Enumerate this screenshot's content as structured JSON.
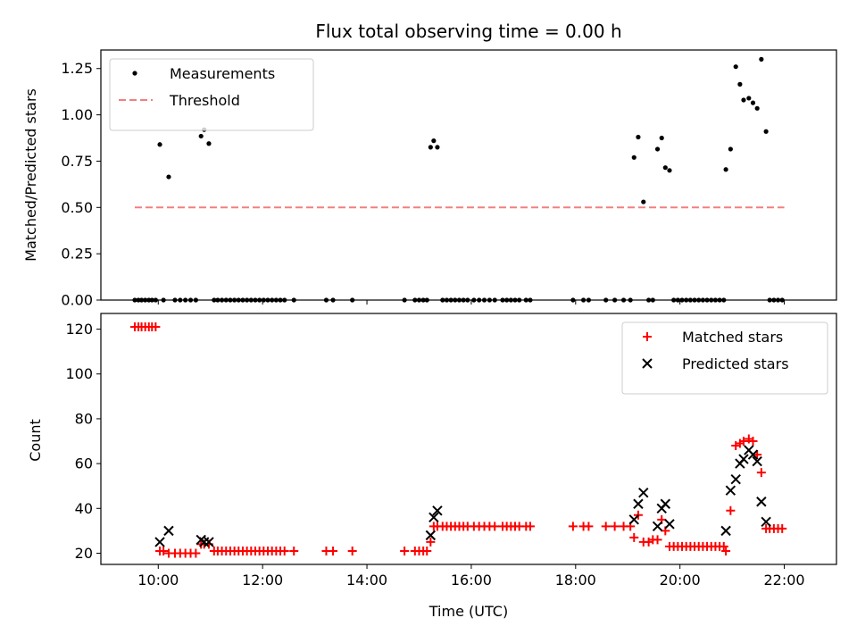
{
  "chart_data": [
    {
      "type": "scatter",
      "title": "Flux total observing time = 0.00 h",
      "xlabel": "",
      "ylabel": "Matched/Predicted stars",
      "xlim_hours": [
        8.9,
        23.0
      ],
      "ylim": [
        0,
        1.35
      ],
      "yticks": [
        0.0,
        0.25,
        0.5,
        0.75,
        1.0,
        1.25
      ],
      "ytick_labels": [
        "0.00",
        "0.25",
        "0.50",
        "0.75",
        "1.00",
        "1.25"
      ],
      "legend_position": "top-left",
      "series": [
        {
          "name": "Measurements",
          "kind": "dot",
          "color": "#000000",
          "points": [
            [
              9.55,
              0
            ],
            [
              9.62,
              0
            ],
            [
              9.68,
              0
            ],
            [
              9.75,
              0
            ],
            [
              9.82,
              0
            ],
            [
              9.88,
              0
            ],
            [
              9.95,
              0
            ],
            [
              10.03,
              0.84
            ],
            [
              10.1,
              0
            ],
            [
              10.2,
              0.665
            ],
            [
              10.32,
              0
            ],
            [
              10.42,
              0
            ],
            [
              10.52,
              0
            ],
            [
              10.62,
              0
            ],
            [
              10.72,
              0
            ],
            [
              10.82,
              0.885
            ],
            [
              10.88,
              0.92
            ],
            [
              10.97,
              0.845
            ],
            [
              11.07,
              0
            ],
            [
              11.14,
              0
            ],
            [
              11.22,
              0
            ],
            [
              11.3,
              0
            ],
            [
              11.38,
              0
            ],
            [
              11.46,
              0
            ],
            [
              11.54,
              0
            ],
            [
              11.62,
              0
            ],
            [
              11.7,
              0
            ],
            [
              11.78,
              0
            ],
            [
              11.86,
              0
            ],
            [
              11.94,
              0
            ],
            [
              12.02,
              0
            ],
            [
              12.1,
              0
            ],
            [
              12.18,
              0
            ],
            [
              12.26,
              0
            ],
            [
              12.34,
              0
            ],
            [
              12.42,
              0
            ],
            [
              12.6,
              0
            ],
            [
              13.22,
              0
            ],
            [
              13.35,
              0
            ],
            [
              13.72,
              0
            ],
            [
              14.72,
              0
            ],
            [
              14.92,
              0
            ],
            [
              15.0,
              0
            ],
            [
              15.08,
              0
            ],
            [
              15.15,
              0
            ],
            [
              15.22,
              0.825
            ],
            [
              15.28,
              0.86
            ],
            [
              15.35,
              0.825
            ],
            [
              15.45,
              0
            ],
            [
              15.53,
              0
            ],
            [
              15.61,
              0
            ],
            [
              15.69,
              0
            ],
            [
              15.77,
              0
            ],
            [
              15.85,
              0
            ],
            [
              15.93,
              0
            ],
            [
              16.05,
              0
            ],
            [
              16.15,
              0
            ],
            [
              16.25,
              0
            ],
            [
              16.35,
              0
            ],
            [
              16.45,
              0
            ],
            [
              16.6,
              0
            ],
            [
              16.68,
              0
            ],
            [
              16.76,
              0
            ],
            [
              16.84,
              0
            ],
            [
              16.92,
              0
            ],
            [
              17.05,
              0
            ],
            [
              17.13,
              0
            ],
            [
              17.95,
              0
            ],
            [
              18.15,
              0
            ],
            [
              18.25,
              0
            ],
            [
              18.58,
              0
            ],
            [
              18.75,
              0
            ],
            [
              18.92,
              0
            ],
            [
              19.05,
              0
            ],
            [
              19.12,
              0.77
            ],
            [
              19.2,
              0.88
            ],
            [
              19.3,
              0.53
            ],
            [
              19.4,
              0
            ],
            [
              19.48,
              0
            ],
            [
              19.57,
              0.815
            ],
            [
              19.65,
              0.875
            ],
            [
              19.72,
              0.715
            ],
            [
              19.8,
              0.7
            ],
            [
              19.88,
              0
            ],
            [
              19.96,
              0
            ],
            [
              20.04,
              0
            ],
            [
              20.12,
              0
            ],
            [
              20.2,
              0
            ],
            [
              20.28,
              0
            ],
            [
              20.36,
              0
            ],
            [
              20.44,
              0
            ],
            [
              20.52,
              0
            ],
            [
              20.6,
              0
            ],
            [
              20.68,
              0
            ],
            [
              20.76,
              0
            ],
            [
              20.84,
              0
            ],
            [
              20.88,
              0.705
            ],
            [
              20.97,
              0.815
            ],
            [
              21.07,
              1.26
            ],
            [
              21.15,
              1.165
            ],
            [
              21.22,
              1.08
            ],
            [
              21.32,
              1.09
            ],
            [
              21.4,
              1.065
            ],
            [
              21.48,
              1.035
            ],
            [
              21.56,
              1.3
            ],
            [
              21.65,
              0.91
            ],
            [
              21.72,
              0
            ],
            [
              21.8,
              0
            ],
            [
              21.88,
              0
            ],
            [
              21.96,
              0
            ]
          ]
        },
        {
          "name": "Threshold",
          "kind": "dashed-line",
          "color": "#f08080",
          "points": [
            [
              9.55,
              0.5
            ],
            [
              22.0,
              0.5
            ]
          ]
        }
      ]
    },
    {
      "type": "scatter",
      "title": "",
      "xlabel": "Time (UTC)",
      "ylabel": "Count",
      "xlim_hours": [
        8.9,
        23.0
      ],
      "ylim": [
        15,
        127
      ],
      "yticks": [
        20,
        40,
        60,
        80,
        100,
        120
      ],
      "ytick_labels": [
        "20",
        "40",
        "60",
        "80",
        "100",
        "120"
      ],
      "xticks_hours": [
        10,
        12,
        14,
        16,
        18,
        20,
        22
      ],
      "xtick_labels": [
        "10:00",
        "12:00",
        "14:00",
        "16:00",
        "18:00",
        "20:00",
        "22:00"
      ],
      "legend_position": "top-right",
      "series": [
        {
          "name": "Matched stars",
          "kind": "plus",
          "color": "#ff0000",
          "points": [
            [
              9.55,
              121
            ],
            [
              9.62,
              121
            ],
            [
              9.68,
              121
            ],
            [
              9.75,
              121
            ],
            [
              9.82,
              121
            ],
            [
              9.88,
              121
            ],
            [
              9.95,
              121
            ],
            [
              10.03,
              21
            ],
            [
              10.1,
              21
            ],
            [
              10.2,
              20
            ],
            [
              10.32,
              20
            ],
            [
              10.42,
              20
            ],
            [
              10.52,
              20
            ],
            [
              10.62,
              20
            ],
            [
              10.72,
              20
            ],
            [
              10.82,
              24
            ],
            [
              10.88,
              24
            ],
            [
              10.97,
              24
            ],
            [
              11.07,
              21
            ],
            [
              11.14,
              21
            ],
            [
              11.22,
              21
            ],
            [
              11.3,
              21
            ],
            [
              11.38,
              21
            ],
            [
              11.46,
              21
            ],
            [
              11.54,
              21
            ],
            [
              11.62,
              21
            ],
            [
              11.7,
              21
            ],
            [
              11.78,
              21
            ],
            [
              11.86,
              21
            ],
            [
              11.94,
              21
            ],
            [
              12.02,
              21
            ],
            [
              12.1,
              21
            ],
            [
              12.18,
              21
            ],
            [
              12.26,
              21
            ],
            [
              12.34,
              21
            ],
            [
              12.42,
              21
            ],
            [
              12.6,
              21
            ],
            [
              13.22,
              21
            ],
            [
              13.35,
              21
            ],
            [
              13.72,
              21
            ],
            [
              14.72,
              21
            ],
            [
              14.92,
              21
            ],
            [
              15.0,
              21
            ],
            [
              15.08,
              21
            ],
            [
              15.15,
              21
            ],
            [
              15.22,
              25
            ],
            [
              15.28,
              32
            ],
            [
              15.35,
              32
            ],
            [
              15.45,
              32
            ],
            [
              15.53,
              32
            ],
            [
              15.61,
              32
            ],
            [
              15.69,
              32
            ],
            [
              15.77,
              32
            ],
            [
              15.85,
              32
            ],
            [
              15.93,
              32
            ],
            [
              16.05,
              32
            ],
            [
              16.15,
              32
            ],
            [
              16.25,
              32
            ],
            [
              16.35,
              32
            ],
            [
              16.45,
              32
            ],
            [
              16.6,
              32
            ],
            [
              16.68,
              32
            ],
            [
              16.76,
              32
            ],
            [
              16.84,
              32
            ],
            [
              16.92,
              32
            ],
            [
              17.05,
              32
            ],
            [
              17.13,
              32
            ],
            [
              17.95,
              32
            ],
            [
              18.15,
              32
            ],
            [
              18.25,
              32
            ],
            [
              18.58,
              32
            ],
            [
              18.75,
              32
            ],
            [
              18.92,
              32
            ],
            [
              19.05,
              32
            ],
            [
              19.12,
              27
            ],
            [
              19.2,
              37
            ],
            [
              19.3,
              25
            ],
            [
              19.4,
              25
            ],
            [
              19.48,
              26
            ],
            [
              19.57,
              26
            ],
            [
              19.65,
              35
            ],
            [
              19.72,
              30
            ],
            [
              19.8,
              23
            ],
            [
              19.88,
              23
            ],
            [
              19.96,
              23
            ],
            [
              20.04,
              23
            ],
            [
              20.12,
              23
            ],
            [
              20.2,
              23
            ],
            [
              20.28,
              23
            ],
            [
              20.36,
              23
            ],
            [
              20.44,
              23
            ],
            [
              20.52,
              23
            ],
            [
              20.6,
              23
            ],
            [
              20.68,
              23
            ],
            [
              20.76,
              23
            ],
            [
              20.84,
              23
            ],
            [
              20.88,
              21
            ],
            [
              20.97,
              39
            ],
            [
              21.07,
              68
            ],
            [
              21.15,
              69
            ],
            [
              21.22,
              70
            ],
            [
              21.32,
              71
            ],
            [
              21.4,
              70
            ],
            [
              21.48,
              64
            ],
            [
              21.56,
              56
            ],
            [
              21.65,
              31
            ],
            [
              21.72,
              31
            ],
            [
              21.8,
              31
            ],
            [
              21.88,
              31
            ],
            [
              21.96,
              31
            ]
          ]
        },
        {
          "name": "Predicted stars",
          "kind": "cross",
          "color": "#000000",
          "points": [
            [
              10.03,
              25
            ],
            [
              10.2,
              30
            ],
            [
              10.82,
              26
            ],
            [
              10.88,
              25
            ],
            [
              10.97,
              25
            ],
            [
              15.22,
              28
            ],
            [
              15.28,
              36
            ],
            [
              15.35,
              39
            ],
            [
              19.12,
              35
            ],
            [
              19.2,
              42
            ],
            [
              19.3,
              47
            ],
            [
              19.57,
              32
            ],
            [
              19.65,
              40
            ],
            [
              19.72,
              42
            ],
            [
              19.8,
              33
            ],
            [
              20.88,
              30
            ],
            [
              20.97,
              48
            ],
            [
              21.07,
              53
            ],
            [
              21.15,
              60
            ],
            [
              21.22,
              62
            ],
            [
              21.32,
              66
            ],
            [
              21.4,
              64
            ],
            [
              21.48,
              61
            ],
            [
              21.56,
              43
            ],
            [
              21.65,
              34
            ]
          ]
        }
      ]
    }
  ]
}
